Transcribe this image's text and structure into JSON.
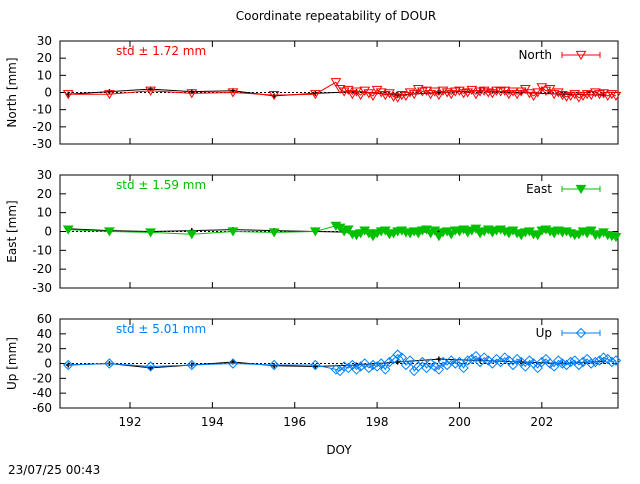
{
  "title": "Coordinate repeatability of DOUR",
  "timestamp": "23/07/25 00:43",
  "chart_data": [
    {
      "type": "line",
      "component": "north",
      "ylabel": "North [mm]",
      "xlabel": "",
      "xlim": [
        190.3,
        203.85
      ],
      "ylim": [
        -30,
        30
      ],
      "yticks": [
        -30,
        -20,
        -10,
        0,
        10,
        20,
        30
      ],
      "xticks": [
        192,
        194,
        196,
        198,
        200,
        202
      ],
      "grid": false,
      "legend": "top-right",
      "color": "#ff0000",
      "marker": "triangle-down-open",
      "annotation": "std ± 1.72 mm",
      "series": [
        {
          "name": "North",
          "x": [
            190.5,
            191.5,
            192.5,
            193.5,
            194.5,
            195.5,
            196.5,
            197.0,
            197.1,
            197.2,
            197.3,
            197.4,
            197.5,
            197.6,
            197.7,
            197.8,
            197.9,
            198.0,
            198.1,
            198.2,
            198.3,
            198.4,
            198.5,
            198.6,
            198.7,
            198.8,
            198.9,
            199.0,
            199.1,
            199.2,
            199.3,
            199.4,
            199.5,
            199.6,
            199.7,
            199.8,
            199.9,
            200.0,
            200.1,
            200.2,
            200.3,
            200.4,
            200.5,
            200.6,
            200.7,
            200.8,
            200.9,
            201.0,
            201.1,
            201.2,
            201.3,
            201.4,
            201.5,
            201.6,
            201.7,
            201.8,
            201.9,
            202.0,
            202.1,
            202.2,
            202.3,
            202.4,
            202.5,
            202.6,
            202.7,
            202.8,
            202.9,
            203.0,
            203.1,
            203.2,
            203.3,
            203.4,
            203.5,
            203.6,
            203.7,
            203.8
          ],
          "y": [
            -1,
            -1,
            1,
            -0.5,
            0,
            -1.5,
            -1,
            6,
            2,
            0.5,
            1.5,
            -1,
            0.5,
            -1.5,
            1,
            -0.5,
            -2,
            1.5,
            0,
            -1.5,
            -0.5,
            -2.5,
            -3,
            -1.5,
            -2,
            0,
            -1,
            2,
            0.5,
            1,
            -1,
            0.5,
            -1.5,
            1,
            0,
            -1,
            0.5,
            1,
            -0.5,
            0,
            1.5,
            -1,
            0.5,
            1,
            0,
            -0.5,
            1,
            0.5,
            1,
            -1,
            0.5,
            -1,
            0.5,
            2,
            -0.5,
            -2,
            0,
            3,
            1,
            2,
            -1,
            0,
            -1.5,
            -2.5,
            -2,
            -1,
            -3,
            -2,
            -1,
            -1.5,
            0,
            -1,
            -0.5,
            -2,
            -1,
            -2
          ]
        },
        {
          "name": "",
          "x": [
            190.5,
            191.5,
            192.5,
            193.5,
            194.5,
            195.5,
            196.5,
            197.5,
            198.5,
            199.5,
            200.5,
            201.5,
            202.5,
            203.5
          ],
          "y": [
            -1,
            0.5,
            2,
            0.5,
            1,
            -2,
            -0.5,
            0.5,
            -1.5,
            0,
            1,
            0,
            -1,
            -1.5
          ]
        }
      ]
    },
    {
      "type": "line",
      "component": "east",
      "ylabel": "East [mm]",
      "xlabel": "",
      "xlim": [
        190.3,
        203.85
      ],
      "ylim": [
        -30,
        30
      ],
      "yticks": [
        -30,
        -20,
        -10,
        0,
        10,
        20,
        30
      ],
      "xticks": [
        192,
        194,
        196,
        198,
        200,
        202
      ],
      "grid": false,
      "legend": "top-right",
      "color": "#00c000",
      "marker": "triangle-down-filled",
      "annotation": "std ± 1.59 mm",
      "series": [
        {
          "name": "East",
          "x": [
            190.5,
            191.5,
            192.5,
            193.5,
            194.5,
            195.5,
            196.5,
            197.0,
            197.1,
            197.2,
            197.3,
            197.4,
            197.5,
            197.6,
            197.7,
            197.8,
            197.9,
            198.0,
            198.1,
            198.2,
            198.3,
            198.4,
            198.5,
            198.6,
            198.7,
            198.8,
            198.9,
            199.0,
            199.1,
            199.2,
            199.3,
            199.4,
            199.5,
            199.6,
            199.7,
            199.8,
            199.9,
            200.0,
            200.1,
            200.2,
            200.3,
            200.4,
            200.5,
            200.6,
            200.7,
            200.8,
            200.9,
            201.0,
            201.1,
            201.2,
            201.3,
            201.4,
            201.5,
            201.6,
            201.7,
            201.8,
            201.9,
            202.0,
            202.1,
            202.2,
            202.3,
            202.4,
            202.5,
            202.6,
            202.7,
            202.8,
            202.9,
            203.0,
            203.1,
            203.2,
            203.3,
            203.4,
            203.5,
            203.6,
            203.7,
            203.8
          ],
          "y": [
            1,
            0,
            -0.5,
            -1.5,
            0,
            -0.5,
            0,
            3,
            2,
            0,
            1,
            -1.5,
            -2,
            -1,
            0.5,
            -1,
            -2.5,
            -1,
            0,
            0.5,
            -1.5,
            -1,
            0,
            0.5,
            -0.5,
            -1,
            0,
            -1,
            0.5,
            1,
            -1,
            0.5,
            -2.5,
            -0.5,
            0,
            -1.5,
            0.5,
            0,
            1,
            -0.5,
            0.5,
            1.5,
            -1,
            0,
            1,
            -0.5,
            0.5,
            1,
            0,
            -1,
            0.5,
            -1,
            -2,
            -0.5,
            0,
            -1.5,
            -2,
            0.5,
            1,
            0,
            -1,
            0.5,
            -0.5,
            0,
            -1,
            -2,
            -1.5,
            0,
            -1,
            0.5,
            -2,
            -1.5,
            -0.5,
            -2,
            -2.5,
            -3
          ]
        },
        {
          "name": "",
          "x": [
            190.5,
            191.5,
            192.5,
            193.5,
            194.5,
            195.5,
            196.5,
            197.5,
            198.5,
            199.5,
            200.5,
            201.5,
            202.5,
            203.5
          ],
          "y": [
            1.5,
            0.5,
            0,
            0.5,
            1,
            0.5,
            0,
            -0.5,
            0,
            -0.5,
            0.5,
            0,
            -0.5,
            -1
          ]
        }
      ]
    },
    {
      "type": "line",
      "component": "up",
      "ylabel": "Up [mm]",
      "xlabel": "DOY",
      "xlim": [
        190.3,
        203.85
      ],
      "ylim": [
        -60,
        60
      ],
      "yticks": [
        -60,
        -40,
        -20,
        0,
        20,
        40,
        60
      ],
      "xticks": [
        192,
        194,
        196,
        198,
        200,
        202
      ],
      "grid": false,
      "legend": "top-right",
      "color": "#0080ff",
      "marker": "diamond-open",
      "annotation": "std ± 5.01 mm",
      "series": [
        {
          "name": "Up",
          "x": [
            190.5,
            191.5,
            192.5,
            193.5,
            194.5,
            195.5,
            196.5,
            197.0,
            197.1,
            197.2,
            197.3,
            197.4,
            197.5,
            197.6,
            197.7,
            197.8,
            197.9,
            198.0,
            198.1,
            198.2,
            198.3,
            198.4,
            198.5,
            198.6,
            198.7,
            198.8,
            198.9,
            199.0,
            199.1,
            199.2,
            199.3,
            199.4,
            199.5,
            199.6,
            199.7,
            199.8,
            199.9,
            200.0,
            200.1,
            200.2,
            200.3,
            200.4,
            200.5,
            200.6,
            200.7,
            200.8,
            200.9,
            201.0,
            201.1,
            201.2,
            201.3,
            201.4,
            201.5,
            201.6,
            201.7,
            201.8,
            201.9,
            202.0,
            202.1,
            202.2,
            202.3,
            202.4,
            202.5,
            202.6,
            202.7,
            202.8,
            202.9,
            203.0,
            203.1,
            203.2,
            203.3,
            203.4,
            203.5,
            203.6,
            203.7,
            203.8
          ],
          "y": [
            -2,
            0,
            -4,
            -2,
            0,
            -2,
            -2,
            -8,
            -10,
            -4,
            -6,
            -2,
            -8,
            -4,
            0,
            -6,
            -2,
            -4,
            0,
            -8,
            2,
            6,
            12,
            8,
            -2,
            4,
            -10,
            -4,
            2,
            -6,
            0,
            -4,
            -8,
            2,
            -2,
            4,
            0,
            2,
            -6,
            4,
            6,
            10,
            2,
            8,
            4,
            0,
            6,
            2,
            8,
            4,
            -2,
            6,
            2,
            -4,
            4,
            0,
            -6,
            2,
            6,
            0,
            -4,
            4,
            0,
            -2,
            2,
            4,
            -2,
            2,
            6,
            0,
            2,
            4,
            8,
            6,
            2,
            4
          ]
        },
        {
          "name": "",
          "x": [
            190.5,
            191.5,
            192.5,
            193.5,
            194.5,
            195.5,
            196.5,
            197.5,
            198.5,
            199.5,
            200.5,
            201.5,
            202.5,
            203.5
          ],
          "y": [
            -2,
            0,
            -6,
            -2,
            2,
            -3,
            -4,
            -2,
            2,
            6,
            4,
            2,
            0,
            3
          ]
        }
      ]
    }
  ]
}
